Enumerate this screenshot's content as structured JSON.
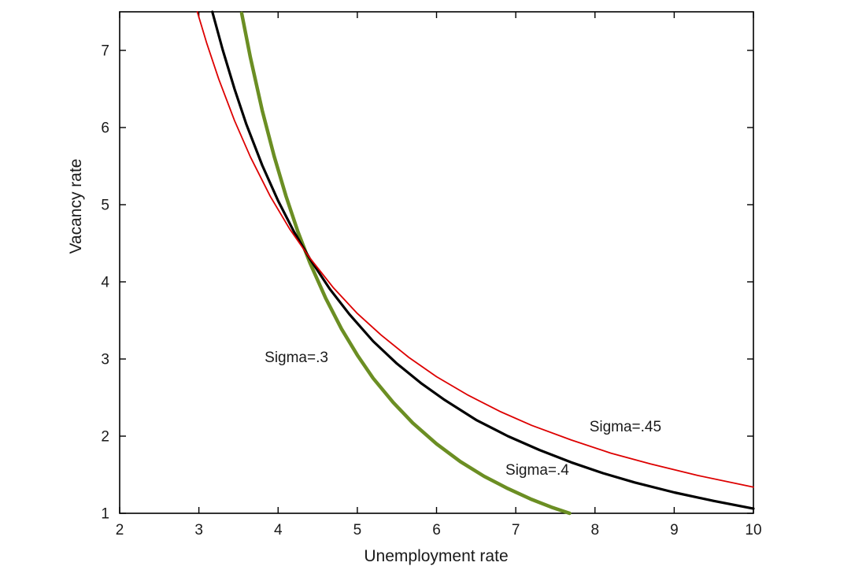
{
  "figure": {
    "background": "#ffffff"
  },
  "chart_data": {
    "type": "line",
    "title": "",
    "xlabel": "Unemployment rate",
    "ylabel": "Vacancy rate",
    "xlim": [
      2,
      10
    ],
    "ylim": [
      1,
      7.5
    ],
    "xticks": [
      2,
      3,
      4,
      5,
      6,
      7,
      8,
      9,
      10
    ],
    "yticks": [
      1,
      2,
      3,
      4,
      5,
      6,
      7
    ],
    "grid": false,
    "legend_position": "none",
    "axis_color": "#000000",
    "tick_label_color": "#1a1a1a",
    "series": [
      {
        "name": "Sigma=.3",
        "color": "#6b8e23",
        "line_width": 4.5,
        "x": [
          3.54,
          3.65,
          3.8,
          3.95,
          4.1,
          4.25,
          4.4,
          4.6,
          4.8,
          5.0,
          5.2,
          5.45,
          5.7,
          6.0,
          6.3,
          6.6,
          6.9,
          7.2,
          7.45,
          7.68
        ],
        "y": [
          7.48,
          6.91,
          6.22,
          5.63,
          5.11,
          4.65,
          4.25,
          3.79,
          3.39,
          3.05,
          2.75,
          2.44,
          2.17,
          1.9,
          1.67,
          1.48,
          1.32,
          1.18,
          1.08,
          1.0
        ]
      },
      {
        "name": "Sigma=.4",
        "color": "#000000",
        "line_width": 3.2,
        "x": [
          3.17,
          3.3,
          3.45,
          3.6,
          3.8,
          4.0,
          4.2,
          4.4,
          4.65,
          4.9,
          5.2,
          5.5,
          5.8,
          6.1,
          6.5,
          6.9,
          7.3,
          7.7,
          8.1,
          8.5,
          9.0,
          9.5,
          10.0
        ],
        "y": [
          7.5,
          7.01,
          6.5,
          6.04,
          5.51,
          5.05,
          4.65,
          4.3,
          3.91,
          3.58,
          3.23,
          2.94,
          2.69,
          2.47,
          2.21,
          2.0,
          1.82,
          1.66,
          1.52,
          1.4,
          1.27,
          1.16,
          1.06
        ]
      },
      {
        "name": "Sigma=.45",
        "color": "#dd0000",
        "line_width": 1.8,
        "x": [
          2.98,
          3.1,
          3.25,
          3.45,
          3.65,
          3.9,
          4.15,
          4.4,
          4.7,
          5.0,
          5.3,
          5.65,
          6.0,
          6.4,
          6.8,
          7.2,
          7.7,
          8.2,
          8.7,
          9.3,
          10.0
        ],
        "y": [
          7.5,
          7.09,
          6.63,
          6.09,
          5.62,
          5.11,
          4.68,
          4.31,
          3.92,
          3.59,
          3.31,
          3.02,
          2.77,
          2.53,
          2.32,
          2.14,
          1.95,
          1.78,
          1.64,
          1.49,
          1.34
        ]
      }
    ],
    "annotations": [
      {
        "text": "Sigma=.3",
        "x": 3.83,
        "y": 3.02,
        "color": "#000000"
      },
      {
        "text": "Sigma=.4",
        "x": 6.87,
        "y": 1.56,
        "color": "#000000"
      },
      {
        "text": "Sigma=.45",
        "x": 7.93,
        "y": 2.12,
        "color": "#000000"
      }
    ]
  }
}
